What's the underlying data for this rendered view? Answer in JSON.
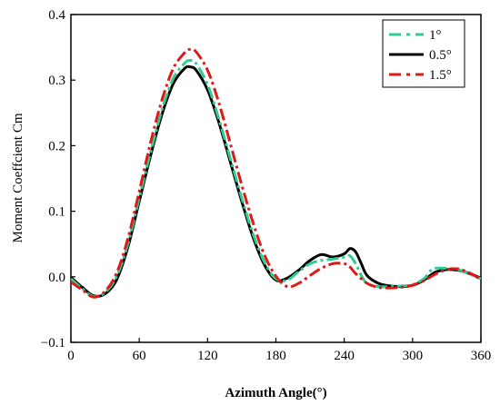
{
  "chart_data": {
    "type": "line",
    "xlabel": "Azimuth Angle(°)",
    "ylabel": "Moment Coeffcient Cm",
    "xlim": [
      0,
      360
    ],
    "ylim": [
      -0.1,
      0.4
    ],
    "xticks": [
      0,
      60,
      120,
      180,
      240,
      300,
      360
    ],
    "yticks": [
      -0.1,
      0.0,
      0.1,
      0.2,
      0.3,
      0.4
    ],
    "xtick_labels": [
      "0",
      "60",
      "120",
      "180",
      "240",
      "300",
      "360"
    ],
    "ytick_labels": [
      "−0.1",
      "0.0",
      "0.1",
      "0.2",
      "0.3",
      "0.4"
    ],
    "grid": false,
    "legend_position": "top-right",
    "series": [
      {
        "name": "1°",
        "color": "#2ecc8f",
        "dash": "dash-dot",
        "points": [
          [
            0,
            -0.003
          ],
          [
            10,
            -0.018
          ],
          [
            20,
            -0.03
          ],
          [
            30,
            -0.024
          ],
          [
            40,
            0.0
          ],
          [
            50,
            0.05
          ],
          [
            60,
            0.12
          ],
          [
            70,
            0.19
          ],
          [
            80,
            0.255
          ],
          [
            90,
            0.303
          ],
          [
            100,
            0.326
          ],
          [
            105,
            0.33
          ],
          [
            110,
            0.325
          ],
          [
            120,
            0.293
          ],
          [
            130,
            0.24
          ],
          [
            140,
            0.18
          ],
          [
            150,
            0.12
          ],
          [
            160,
            0.065
          ],
          [
            170,
            0.022
          ],
          [
            180,
            -0.003
          ],
          [
            190,
            -0.005
          ],
          [
            200,
            0.008
          ],
          [
            210,
            0.02
          ],
          [
            220,
            0.025
          ],
          [
            230,
            0.027
          ],
          [
            240,
            0.03
          ],
          [
            245,
            0.032
          ],
          [
            250,
            0.02
          ],
          [
            255,
            0.002
          ],
          [
            260,
            -0.01
          ],
          [
            270,
            -0.015
          ],
          [
            280,
            -0.015
          ],
          [
            290,
            -0.014
          ],
          [
            300,
            -0.012
          ],
          [
            310,
            -0.003
          ],
          [
            315,
            0.008
          ],
          [
            320,
            0.013
          ],
          [
            330,
            0.013
          ],
          [
            340,
            0.011
          ],
          [
            350,
            0.004
          ],
          [
            360,
            -0.003
          ]
        ]
      },
      {
        "name": "0.5°",
        "color": "#000000",
        "dash": "solid",
        "points": [
          [
            0,
            -0.001
          ],
          [
            10,
            -0.016
          ],
          [
            20,
            -0.029
          ],
          [
            30,
            -0.026
          ],
          [
            40,
            -0.005
          ],
          [
            50,
            0.045
          ],
          [
            60,
            0.115
          ],
          [
            70,
            0.185
          ],
          [
            80,
            0.248
          ],
          [
            90,
            0.295
          ],
          [
            100,
            0.318
          ],
          [
            105,
            0.32
          ],
          [
            110,
            0.315
          ],
          [
            120,
            0.285
          ],
          [
            130,
            0.235
          ],
          [
            140,
            0.175
          ],
          [
            150,
            0.115
          ],
          [
            160,
            0.06
          ],
          [
            170,
            0.018
          ],
          [
            180,
            -0.005
          ],
          [
            190,
            -0.002
          ],
          [
            200,
            0.01
          ],
          [
            210,
            0.025
          ],
          [
            220,
            0.034
          ],
          [
            230,
            0.03
          ],
          [
            240,
            0.035
          ],
          [
            245,
            0.043
          ],
          [
            250,
            0.038
          ],
          [
            255,
            0.02
          ],
          [
            260,
            0.002
          ],
          [
            270,
            -0.01
          ],
          [
            280,
            -0.014
          ],
          [
            290,
            -0.015
          ],
          [
            300,
            -0.013
          ],
          [
            310,
            -0.005
          ],
          [
            320,
            0.007
          ],
          [
            330,
            0.011
          ],
          [
            340,
            0.01
          ],
          [
            350,
            0.005
          ],
          [
            360,
            -0.002
          ]
        ]
      },
      {
        "name": "1.5°",
        "color": "#e01818",
        "dash": "dash-dot",
        "points": [
          [
            0,
            -0.008
          ],
          [
            10,
            -0.02
          ],
          [
            20,
            -0.031
          ],
          [
            30,
            -0.022
          ],
          [
            40,
            0.005
          ],
          [
            50,
            0.058
          ],
          [
            60,
            0.13
          ],
          [
            70,
            0.205
          ],
          [
            80,
            0.27
          ],
          [
            90,
            0.318
          ],
          [
            100,
            0.342
          ],
          [
            105,
            0.347
          ],
          [
            110,
            0.343
          ],
          [
            120,
            0.315
          ],
          [
            130,
            0.265
          ],
          [
            140,
            0.203
          ],
          [
            150,
            0.14
          ],
          [
            160,
            0.082
          ],
          [
            170,
            0.033
          ],
          [
            180,
            0.001
          ],
          [
            190,
            -0.015
          ],
          [
            200,
            -0.01
          ],
          [
            210,
            0.002
          ],
          [
            220,
            0.013
          ],
          [
            230,
            0.02
          ],
          [
            240,
            0.02
          ],
          [
            245,
            0.015
          ],
          [
            250,
            0.005
          ],
          [
            260,
            -0.01
          ],
          [
            270,
            -0.016
          ],
          [
            280,
            -0.017
          ],
          [
            290,
            -0.016
          ],
          [
            300,
            -0.013
          ],
          [
            310,
            -0.006
          ],
          [
            320,
            0.004
          ],
          [
            330,
            0.011
          ],
          [
            340,
            0.012
          ],
          [
            350,
            0.006
          ],
          [
            360,
            -0.004
          ]
        ]
      }
    ]
  }
}
